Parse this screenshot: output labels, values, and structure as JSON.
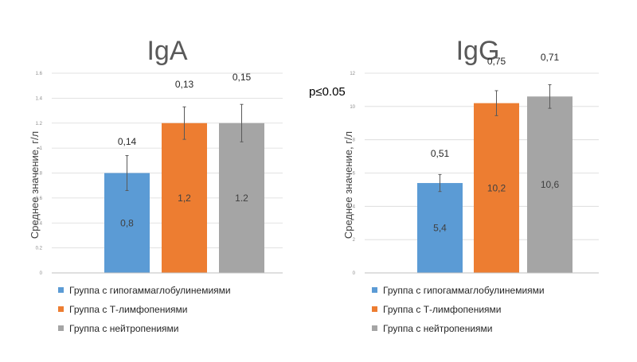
{
  "annotation": "p≤0.05",
  "legend": [
    {
      "label": "Группа с гипогаммаглобулинемиями",
      "color": "#5b9bd5"
    },
    {
      "label": "Группа с Т-лимфопениями",
      "color": "#ed7d31"
    },
    {
      "label": "Группа с нейтропениями",
      "color": "#a5a5a5"
    }
  ],
  "chart_data": [
    {
      "type": "bar",
      "title": "IgA",
      "ylabel": "Среднее значение, г/л",
      "ylim": [
        0,
        1.6
      ],
      "yticks": [
        "0",
        "0.2",
        "0.4",
        "0.6",
        "0.8",
        "1",
        "1.2",
        "1.4",
        "1.6"
      ],
      "categories": [
        "Группа с гипогаммаглобулинемиями",
        "Группа с Т-лимфопениями",
        "Группа с нейтропениями"
      ],
      "values": [
        0.8,
        1.2,
        1.2
      ],
      "value_labels": [
        "0,8",
        "1,2",
        "1.2"
      ],
      "errors": [
        0.14,
        0.13,
        0.15
      ],
      "error_labels": [
        "0,14",
        "0,13",
        "0,15"
      ],
      "colors": [
        "#5b9bd5",
        "#ed7d31",
        "#a5a5a5"
      ],
      "grid": true
    },
    {
      "type": "bar",
      "title": "IgG",
      "ylabel": "Среднее значение, г/л",
      "ylim": [
        0,
        12
      ],
      "yticks": [
        "0",
        "2",
        "4",
        "6",
        "8",
        "10",
        "12"
      ],
      "categories": [
        "Группа с гипогаммаглобулинемиями",
        "Группа с Т-лимфопениями",
        "Группа с нейтропениями"
      ],
      "values": [
        5.4,
        10.2,
        10.6
      ],
      "value_labels": [
        "5,4",
        "10,2",
        "10,6"
      ],
      "errors": [
        0.51,
        0.75,
        0.71
      ],
      "error_labels": [
        "0,51",
        "0,75",
        "0,71"
      ],
      "colors": [
        "#5b9bd5",
        "#ed7d31",
        "#a5a5a5"
      ],
      "grid": true
    }
  ]
}
